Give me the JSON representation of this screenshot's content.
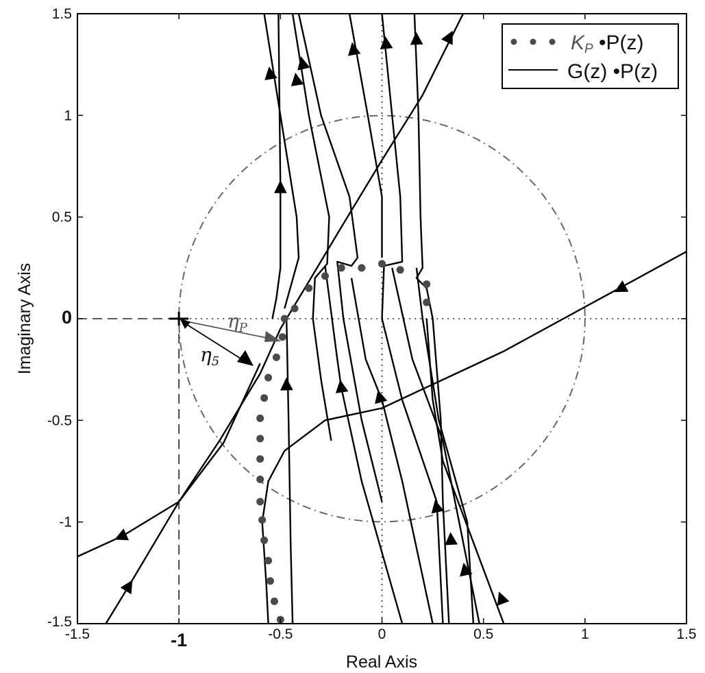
{
  "chart_data": {
    "type": "line",
    "title": "",
    "xlabel": "Real Axis",
    "ylabel": "Imaginary Axis",
    "xlim": [
      -1.5,
      1.5
    ],
    "ylim": [
      -1.5,
      1.5
    ],
    "grid": false,
    "x_ticks": [
      "-1.5",
      "-1",
      "-0.5",
      "0",
      "0.5",
      "1",
      "1.5"
    ],
    "y_ticks": [
      "1.5",
      "1",
      "0.5",
      "0",
      "-0.5",
      "-1",
      "-1.5"
    ],
    "x_tick_bold": "-1",
    "y_tick_bold": "0",
    "legend": {
      "position": "upper right",
      "entries": [
        {
          "label_main": "K",
          "label_sub": "P",
          "label_rest": " •P(z)",
          "style": "dotted-markers",
          "color": "#4a4a4a"
        },
        {
          "label": "G(z) •P(z)",
          "style": "solid",
          "color": "#000000"
        }
      ]
    },
    "annotations": [
      {
        "text": "η",
        "sub": "P",
        "x": -0.72,
        "y": 0.03,
        "color": "#555555"
      },
      {
        "text": "η",
        "sub": "5",
        "x": -0.88,
        "y": -0.2,
        "color": "#111111"
      }
    ],
    "reference_shapes": {
      "unit_circle": {
        "center": [
          0,
          0
        ],
        "radius": 1,
        "style": "dash-dot",
        "color": "#666666"
      },
      "critical_point": [
        -1,
        0
      ]
    },
    "series": [
      {
        "name": "K_P·P(z)",
        "style": "dots",
        "points": [
          [
            0.22,
            0.08
          ],
          [
            0.22,
            0.17
          ],
          [
            0.09,
            0.24
          ],
          [
            0.0,
            0.27
          ],
          [
            -0.1,
            0.25
          ],
          [
            -0.2,
            0.25
          ],
          [
            -0.28,
            0.21
          ],
          [
            -0.36,
            0.15
          ],
          [
            -0.43,
            0.05
          ],
          [
            -0.48,
            0.0
          ],
          [
            -0.49,
            -0.09
          ],
          [
            -0.52,
            -0.19
          ],
          [
            -0.56,
            -0.29
          ],
          [
            -0.58,
            -0.39
          ],
          [
            -0.6,
            -0.49
          ],
          [
            -0.6,
            -0.59
          ],
          [
            -0.6,
            -0.69
          ],
          [
            -0.6,
            -0.79
          ],
          [
            -0.6,
            -0.9
          ],
          [
            -0.59,
            -0.99
          ],
          [
            -0.58,
            -1.09
          ],
          [
            -0.56,
            -1.19
          ],
          [
            -0.55,
            -1.29
          ],
          [
            -0.53,
            -1.39
          ],
          [
            -0.5,
            -1.48
          ]
        ]
      },
      {
        "name": "G(z)·P(z) branches",
        "style": "solid",
        "branches": [
          {
            "id": "b1",
            "points": [
              [
                -0.56,
                -1.5
              ],
              [
                -0.57,
                -1.3
              ],
              [
                -0.59,
                -1.0
              ],
              [
                -0.56,
                -0.8
              ],
              [
                -0.48,
                -0.65
              ],
              [
                -0.28,
                -0.5
              ],
              [
                0.0,
                -0.44
              ],
              [
                0.3,
                -0.3
              ],
              [
                0.6,
                -0.16
              ],
              [
                1.5,
                0.33
              ]
            ],
            "arrows": [
              [
                1.18,
                0.15
              ]
            ]
          },
          {
            "id": "b2",
            "points": [
              [
                -0.44,
                -1.5
              ],
              [
                -0.45,
                -1.1
              ],
              [
                -0.46,
                -0.5
              ],
              [
                -0.47,
                0.0
              ]
            ],
            "arrows": [
              [
                -0.47,
                -0.33
              ]
            ]
          },
          {
            "id": "b3",
            "points": [
              [
                -1.5,
                -1.17
              ],
              [
                -1.28,
                -1.07
              ],
              [
                -1.0,
                -0.9
              ],
              [
                -0.78,
                -0.61
              ],
              [
                -0.6,
                -0.22
              ]
            ],
            "arrows": [
              [
                -1.28,
                -1.07
              ]
            ]
          },
          {
            "id": "b4",
            "points": [
              [
                -1.36,
                -1.5
              ],
              [
                -1.25,
                -1.32
              ],
              [
                -1.0,
                -0.9
              ],
              [
                -0.8,
                -0.6
              ],
              [
                -0.6,
                -0.27
              ],
              [
                -0.5,
                -0.05
              ],
              [
                -0.35,
                0.2
              ],
              [
                -0.2,
                0.45
              ],
              [
                0.0,
                0.78
              ],
              [
                0.2,
                1.1
              ],
              [
                0.4,
                1.5
              ]
            ],
            "arrows": [
              [
                -1.25,
                -1.32
              ],
              [
                0.33,
                1.38
              ]
            ]
          },
          {
            "id": "b5",
            "points": [
              [
                -0.51,
                1.5
              ],
              [
                -0.5,
                0.65
              ],
              [
                -0.5,
                0.25
              ],
              [
                -0.52,
                0.1
              ],
              [
                -0.54,
                0.0
              ]
            ],
            "arrows": [
              [
                -0.5,
                0.64
              ]
            ]
          },
          {
            "id": "b6",
            "points": [
              [
                -0.58,
                1.5
              ],
              [
                -0.5,
                1.0
              ],
              [
                -0.42,
                0.5
              ],
              [
                -0.41,
                0.3
              ],
              [
                -0.48,
                0.05
              ]
            ],
            "arrows": [
              [
                -0.55,
                1.2
              ]
            ]
          },
          {
            "id": "b7",
            "points": [
              [
                -0.44,
                1.5
              ],
              [
                -0.36,
                1.0
              ],
              [
                -0.26,
                0.5
              ],
              [
                -0.27,
                0.27
              ],
              [
                -0.33,
                0.2
              ],
              [
                -0.34,
                0.0
              ],
              [
                -0.3,
                -0.3
              ],
              [
                -0.25,
                -0.6
              ]
            ],
            "arrows": [
              [
                -0.42,
                1.17
              ]
            ]
          },
          {
            "id": "b8",
            "points": [
              [
                -0.41,
                1.5
              ],
              [
                -0.3,
                1.0
              ],
              [
                -0.16,
                0.6
              ],
              [
                -0.12,
                0.3
              ],
              [
                -0.15,
                0.26
              ],
              [
                -0.22,
                0.28
              ],
              [
                -0.19,
                0.0
              ],
              [
                -0.1,
                -0.5
              ],
              [
                0.0,
                -0.9
              ]
            ],
            "arrows": [
              [
                -0.39,
                1.25
              ]
            ]
          },
          {
            "id": "b9",
            "points": [
              [
                -0.16,
                1.5
              ],
              [
                -0.07,
                1.0
              ],
              [
                0.0,
                0.6
              ],
              [
                0.0,
                0.3
              ]
            ],
            "arrows": [
              [
                -0.14,
                1.32
              ]
            ]
          },
          {
            "id": "b10",
            "points": [
              [
                0.0,
                1.5
              ],
              [
                0.05,
                1.0
              ],
              [
                0.09,
                0.6
              ],
              [
                0.1,
                0.28
              ],
              [
                0.01,
                0.26
              ],
              [
                0.0,
                0.0
              ],
              [
                0.1,
                -0.4
              ],
              [
                0.27,
                -0.9
              ],
              [
                0.3,
                -1.5
              ]
            ],
            "arrows": [
              [
                0.02,
                1.35
              ],
              [
                -0.01,
                -0.39
              ]
            ]
          },
          {
            "id": "b11",
            "points": [
              [
                0.16,
                1.5
              ],
              [
                0.18,
                1.0
              ],
              [
                0.19,
                0.5
              ],
              [
                0.2,
                0.25
              ],
              [
                0.17,
                0.2
              ],
              [
                0.22,
                0.15
              ],
              [
                0.25,
                0.0
              ],
              [
                0.29,
                -0.5
              ],
              [
                0.3,
                -0.9
              ],
              [
                0.33,
                -1.5
              ]
            ],
            "arrows": [
              [
                0.17,
                1.37
              ]
            ]
          },
          {
            "id": "b12",
            "points": [
              [
                0.17,
                0.25
              ],
              [
                0.2,
                0.0
              ],
              [
                0.28,
                -0.5
              ],
              [
                0.42,
                -1.0
              ],
              [
                0.45,
                -1.5
              ]
            ],
            "arrows": [
              [
                0.34,
                -1.09
              ]
            ]
          },
          {
            "id": "b13",
            "points": [
              [
                0.05,
                0.25
              ],
              [
                0.15,
                -0.2
              ],
              [
                0.3,
                -0.6
              ],
              [
                0.42,
                -1.2
              ],
              [
                0.48,
                -1.5
              ]
            ],
            "arrows": [
              [
                0.41,
                -1.24
              ]
            ]
          },
          {
            "id": "b14",
            "points": [
              [
                0.22,
                0.0
              ],
              [
                0.25,
                -0.4
              ],
              [
                0.3,
                -0.7
              ],
              [
                0.45,
                -1.1
              ],
              [
                0.6,
                -1.5
              ]
            ],
            "arrows": [
              [
                0.59,
                -1.38
              ]
            ]
          },
          {
            "id": "b15",
            "points": [
              [
                -0.28,
                0.26
              ],
              [
                -0.22,
                -0.2
              ],
              [
                -0.2,
                -0.34
              ],
              [
                -0.1,
                -0.8
              ],
              [
                0.1,
                -1.5
              ]
            ],
            "arrows": [
              [
                -0.2,
                -0.34
              ]
            ]
          },
          {
            "id": "b16",
            "points": [
              [
                -0.15,
                0.2
              ],
              [
                -0.08,
                -0.2
              ],
              [
                0.0,
                -0.4
              ],
              [
                0.1,
                -0.8
              ],
              [
                0.25,
                -1.5
              ]
            ],
            "arrows": [
              [
                0.27,
                -0.93
              ]
            ]
          }
        ]
      }
    ]
  }
}
